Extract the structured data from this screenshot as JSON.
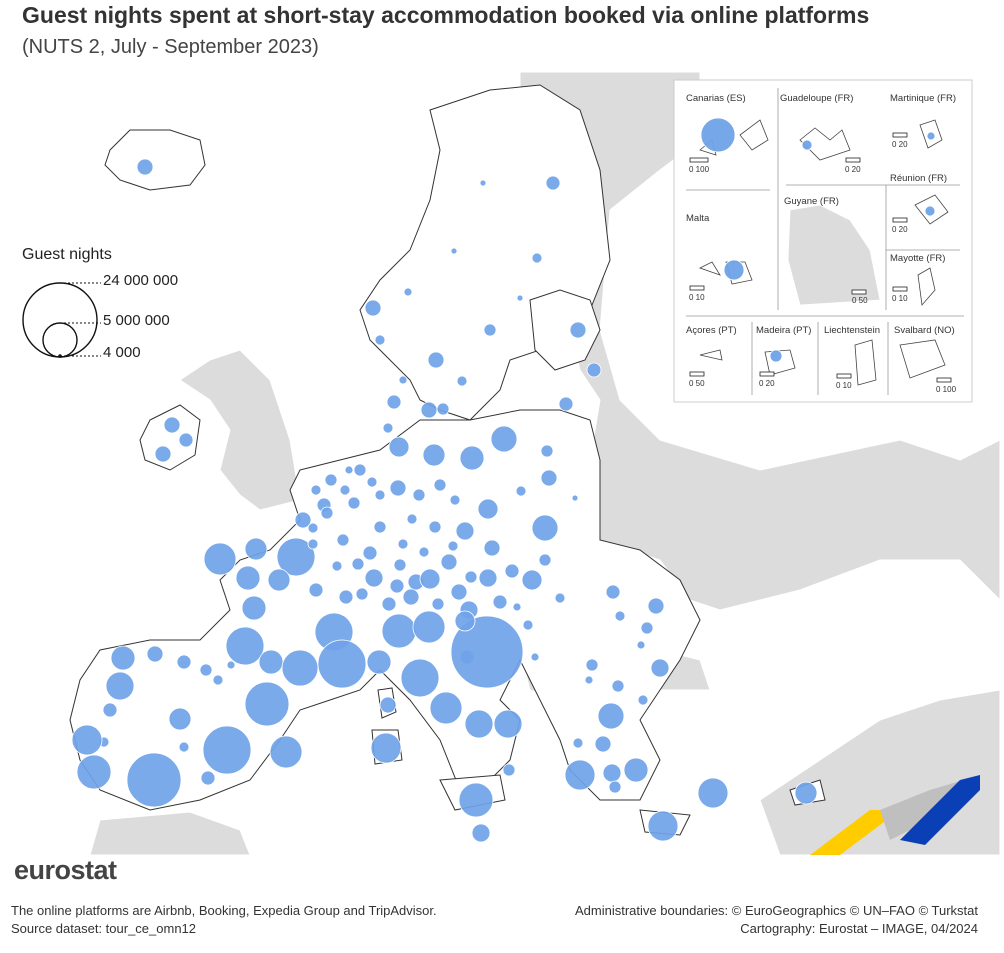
{
  "title": "Guest nights spent at short-stay accommodation booked via online platforms",
  "subtitle": "(NUTS 2, July - September 2023)",
  "legend": {
    "title": "Guest nights",
    "values": [
      "24 000 000",
      "5 000 000",
      "4 000"
    ]
  },
  "colors": {
    "bubble": "#6fa3e8",
    "land_member": "#ffffff",
    "land_other": "#dcdcdc",
    "sea": "#ffffff",
    "borders": "#222222",
    "logo_yellow": "#ffcc00",
    "logo_blue": "#0b3fb5"
  },
  "insets": [
    {
      "name": "Canarias (ES)",
      "scale": "0     100"
    },
    {
      "name": "Guadeloupe (FR)",
      "scale": "0   20"
    },
    {
      "name": "Martinique (FR)",
      "scale": "0   20"
    },
    {
      "name": "Guyane (FR)",
      "scale": "0 50"
    },
    {
      "name": "Réunion (FR)",
      "scale": "0   20"
    },
    {
      "name": "Malta",
      "scale": "0   10"
    },
    {
      "name": "Mayotte (FR)",
      "scale": "0 10"
    },
    {
      "name": "Açores (PT)",
      "scale": "0   50"
    },
    {
      "name": "Madeira (PT)",
      "scale": "0   20"
    },
    {
      "name": "Liechtenstein",
      "scale": "0   10"
    },
    {
      "name": "Svalbard (NO)",
      "scale": "0 100"
    }
  ],
  "brand": "eurostat",
  "footer": {
    "note": "The online platforms are Airbnb, Booking, Expedia Group and TripAdvisor.",
    "source": "Source dataset: tour_ce_omn12",
    "boundaries": "Administrative boundaries: © EuroGeographics © UN–FAO © Turkstat",
    "cartography": "Cartography: Eurostat – IMAGE, 04/2024"
  }
}
